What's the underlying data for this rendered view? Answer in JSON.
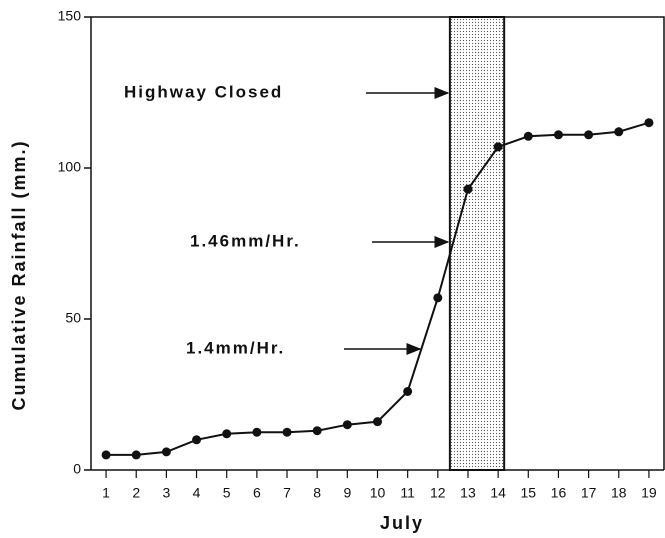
{
  "chart_data": {
    "type": "line",
    "y_label": "Cumulative Rainfall (mm.)",
    "x_label": "July",
    "x": [
      1,
      2,
      3,
      4,
      5,
      6,
      7,
      8,
      9,
      10,
      11,
      12,
      13,
      14,
      15,
      16,
      17,
      18,
      19
    ],
    "series": [
      {
        "color": "#111111",
        "values": [
          5,
          5,
          6,
          10,
          12,
          12.5,
          12.5,
          13,
          15,
          16,
          26,
          57,
          93,
          107,
          110.5,
          111,
          111,
          112,
          115
        ]
      }
    ],
    "xlim": [
      0.5,
      19.5
    ],
    "xticks": [
      1,
      2,
      3,
      4,
      5,
      6,
      7,
      8,
      9,
      10,
      11,
      12,
      13,
      14,
      15,
      16,
      17,
      18,
      19
    ],
    "ylim": [
      0,
      150
    ],
    "yticks": [
      0,
      50,
      100,
      150
    ],
    "shaded_region": [
      12.4,
      14.2
    ],
    "annotations": [
      "Highway Closed",
      "1.46mm/Hr.",
      "1.4mm/Hr."
    ]
  }
}
